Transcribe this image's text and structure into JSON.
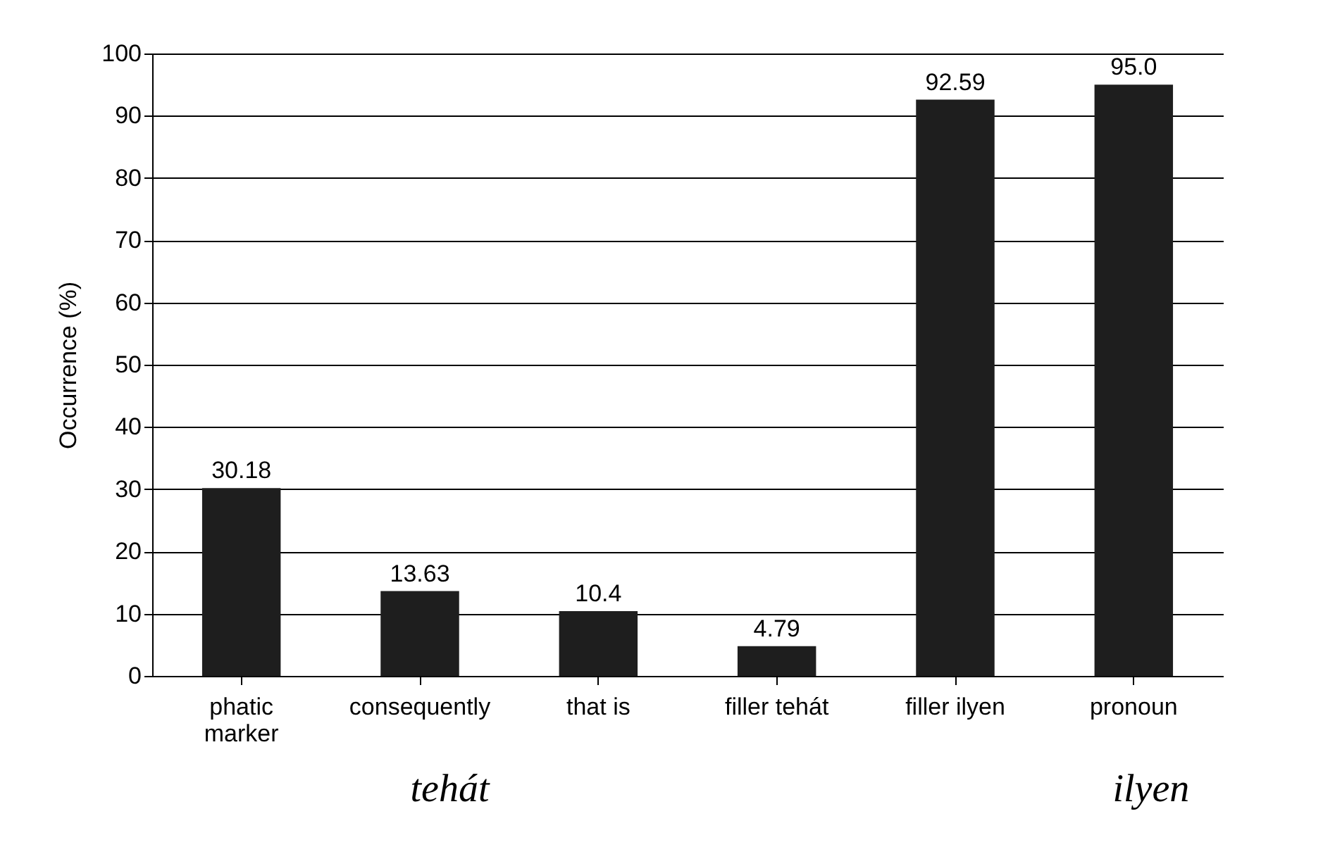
{
  "chart_data": {
    "type": "bar",
    "ylabel": "Occurrence (%)",
    "categories": [
      "phatic marker",
      "consequently",
      "that is",
      "filler tehát",
      "filler ilyen",
      "pronoun"
    ],
    "values": [
      30.18,
      13.63,
      10.4,
      4.79,
      92.59,
      95.0
    ],
    "value_labels": [
      "30.18",
      "13.63",
      "10.4",
      "4.79",
      "92.59",
      "95.0"
    ],
    "color": "#1e1e1e",
    "ylim": [
      0,
      100
    ],
    "yticks": [
      0,
      10,
      20,
      30,
      40,
      50,
      60,
      70,
      80,
      90,
      100
    ],
    "grid": "y",
    "annotations": [
      "tehát",
      "ilyen"
    ]
  }
}
